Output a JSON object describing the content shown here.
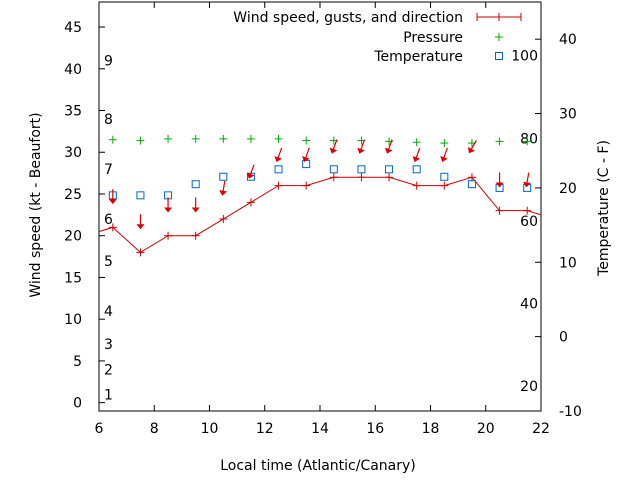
{
  "chart_data": {
    "type": "line",
    "xlabel": "Local time (Atlantic/Canary)",
    "ylabel_left": "Wind speed (kt - Beaufort)",
    "ylabel_right": "Temperature (C - F)",
    "xlim": [
      6,
      22
    ],
    "ylim_left": [
      -1,
      48
    ],
    "ylim_right": [
      -10,
      45
    ],
    "grid": false,
    "legend_position": "top-right",
    "x_ticks": [
      6,
      8,
      10,
      12,
      14,
      16,
      18,
      20,
      22
    ],
    "y_left_ticks": [
      0,
      5,
      10,
      15,
      20,
      25,
      30,
      35,
      40,
      45
    ],
    "y_right_ticks": [
      -10,
      0,
      10,
      20,
      30,
      40
    ],
    "beaufort_labels": [
      {
        "label": "1",
        "kt": 1
      },
      {
        "label": "2",
        "kt": 4
      },
      {
        "label": "3",
        "kt": 7
      },
      {
        "label": "4",
        "kt": 11
      },
      {
        "label": "5",
        "kt": 17
      },
      {
        "label": "6",
        "kt": 22
      },
      {
        "label": "7",
        "kt": 28
      },
      {
        "label": "8",
        "kt": 34
      },
      {
        "label": "9",
        "kt": 41
      }
    ],
    "fahrenheit_labels": [
      {
        "label": "20",
        "celsius": -6.67
      },
      {
        "label": "40",
        "celsius": 4.44
      },
      {
        "label": "60",
        "celsius": 15.56
      },
      {
        "label": "80",
        "celsius": 26.67
      },
      {
        "label": "100",
        "celsius": 37.78
      }
    ],
    "series": [
      {
        "name": "Wind speed, gusts, and direction",
        "color": "#cc0000",
        "x": [
          5.5,
          6.5,
          7.5,
          8.5,
          9.5,
          10.5,
          11.5,
          12.5,
          13.5,
          14.5,
          15.5,
          16.5,
          17.5,
          18.5,
          19.5,
          20.5,
          21.5,
          22.5
        ],
        "y": [
          20,
          21,
          18,
          20,
          20,
          22,
          24,
          26,
          26,
          27,
          27,
          27,
          26,
          26,
          27,
          23,
          23,
          22
        ]
      },
      {
        "name": "Pressure",
        "color": "#00aa00",
        "x": [
          6.5,
          7.5,
          8.5,
          9.5,
          10.5,
          11.5,
          12.5,
          13.5,
          14.5,
          15.5,
          16.5,
          17.5,
          18.5,
          19.5,
          20.5,
          21.5
        ],
        "y": [
          31.5,
          31.4,
          31.6,
          31.6,
          31.6,
          31.6,
          31.6,
          31.4,
          31.4,
          31.4,
          31.3,
          31.2,
          31.1,
          31.1,
          31.3,
          31.3
        ]
      },
      {
        "name": "Temperature",
        "color": "#0066cc",
        "x": [
          6.5,
          7.5,
          8.5,
          9.5,
          10.5,
          11.5,
          12.5,
          13.5,
          14.5,
          15.5,
          16.5,
          17.5,
          18.5,
          19.5,
          20.5,
          21.5
        ],
        "y": [
          19,
          19,
          19,
          20.5,
          21.5,
          21.5,
          22.5,
          23.2,
          22.5,
          22.5,
          22.5,
          22.5,
          21.5,
          20.5,
          20,
          20
        ]
      }
    ],
    "gusts": {
      "color": "#dd0000",
      "x": [
        6.5,
        7.5,
        8.5,
        9.5,
        10.5,
        11.5,
        12.5,
        13.5,
        14.5,
        15.5,
        16.5,
        17.5,
        18.5,
        19.5,
        20.5,
        21.5
      ],
      "y": [
        24.5,
        21.5,
        23.5,
        23.5,
        25.5,
        27.5,
        29.5,
        29.5,
        30.5,
        30.5,
        30.5,
        29.5,
        29.5,
        30.5,
        26.5,
        26.5
      ],
      "direction_deg": [
        0,
        0,
        0,
        0,
        10,
        20,
        20,
        20,
        20,
        20,
        20,
        20,
        20,
        30,
        0,
        10
      ]
    }
  }
}
